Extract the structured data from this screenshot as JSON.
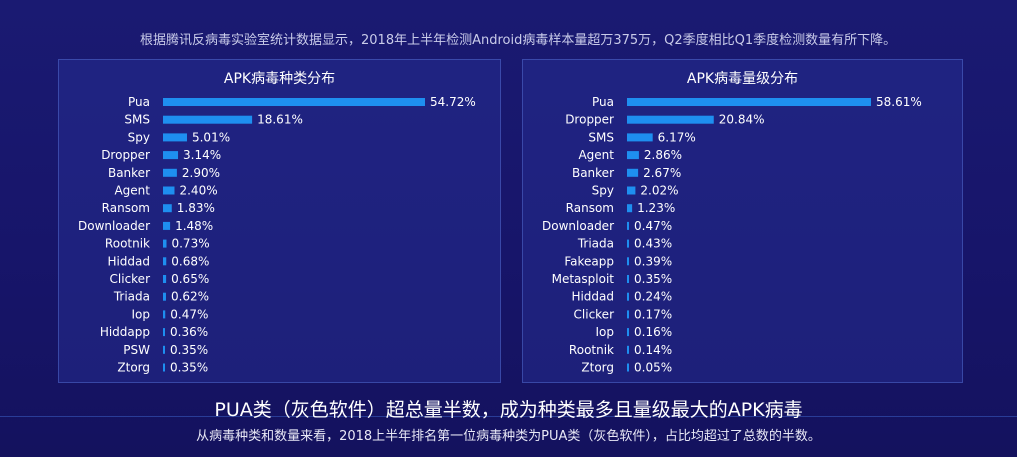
{
  "intro_text": "根据腾讯反病毒实验室统计数据显示，2018年上半年检测Android病毒样本量超万375万，Q2季度相比Q1季度检测数量有所下降。",
  "headline": "PUA类（灰色软件）超总量半数，成为种类最多且量级最大的APK病毒",
  "subline": "从病毒种类和数量来看，2018上半年排名第一位病毒种类为PUA类（灰色软件），占比均超过了总数的半数。",
  "colors": {
    "bar": "#1e8ff0",
    "background": "#1a1a72"
  },
  "chart_data": [
    {
      "type": "bar",
      "orientation": "horizontal",
      "title": "APK病毒种类分布",
      "categories": [
        "Pua",
        "SMS",
        "Spy",
        "Dropper",
        "Banker",
        "Agent",
        "Ransom",
        "Downloader",
        "Rootnik",
        "Hiddad",
        "Clicker",
        "Triada",
        "Iop",
        "Hiddapp",
        "PSW",
        "Ztorg"
      ],
      "values": [
        54.72,
        18.61,
        5.01,
        3.14,
        2.9,
        2.4,
        1.83,
        1.48,
        0.73,
        0.68,
        0.65,
        0.62,
        0.47,
        0.36,
        0.35,
        0.35
      ],
      "value_labels": [
        "54.72%",
        "18.61%",
        "5.01%",
        "3.14%",
        "2.90%",
        "2.40%",
        "1.83%",
        "1.48%",
        "0.73%",
        "0.68%",
        "0.65%",
        "0.62%",
        "0.47%",
        "0.36%",
        "0.35%",
        "0.35%"
      ],
      "unit": "%"
    },
    {
      "type": "bar",
      "orientation": "horizontal",
      "title": "APK病毒量级分布",
      "categories": [
        "Pua",
        "Dropper",
        "SMS",
        "Agent",
        "Banker",
        "Spy",
        "Ransom",
        "Downloader",
        "Triada",
        "Fakeapp",
        "Metasploit",
        "Hiddad",
        "Clicker",
        "Iop",
        "Rootnik",
        "Ztorg"
      ],
      "values": [
        58.61,
        20.84,
        6.17,
        2.86,
        2.67,
        2.02,
        1.23,
        0.47,
        0.43,
        0.39,
        0.35,
        0.24,
        0.17,
        0.16,
        0.14,
        0.05
      ],
      "value_labels": [
        "58.61%",
        "20.84%",
        "6.17%",
        "2.86%",
        "2.67%",
        "2.02%",
        "1.23%",
        "0.47%",
        "0.43%",
        "0.39%",
        "0.35%",
        "0.24%",
        "0.17%",
        "0.16%",
        "0.14%",
        "0.05%"
      ],
      "unit": "%"
    }
  ]
}
